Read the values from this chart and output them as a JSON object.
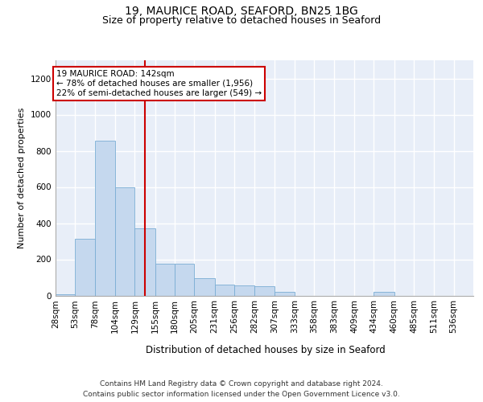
{
  "title_line1": "19, MAURICE ROAD, SEAFORD, BN25 1BG",
  "title_line2": "Size of property relative to detached houses in Seaford",
  "xlabel": "Distribution of detached houses by size in Seaford",
  "ylabel": "Number of detached properties",
  "footer_line1": "Contains HM Land Registry data © Crown copyright and database right 2024.",
  "footer_line2": "Contains public sector information licensed under the Open Government Licence v3.0.",
  "annotation_line1": "19 MAURICE ROAD: 142sqm",
  "annotation_line2": "← 78% of detached houses are smaller (1,956)",
  "annotation_line3": "22% of semi-detached houses are larger (549) →",
  "bar_color": "#c5d8ee",
  "bar_edge_color": "#7aadd4",
  "vline_color": "#cc0000",
  "vline_x": 142,
  "categories": [
    "28sqm",
    "53sqm",
    "78sqm",
    "104sqm",
    "129sqm",
    "155sqm",
    "180sqm",
    "205sqm",
    "231sqm",
    "256sqm",
    "282sqm",
    "307sqm",
    "333sqm",
    "358sqm",
    "383sqm",
    "409sqm",
    "434sqm",
    "460sqm",
    "485sqm",
    "511sqm",
    "536sqm"
  ],
  "bin_edges": [
    28,
    53,
    78,
    104,
    129,
    155,
    180,
    205,
    231,
    256,
    282,
    307,
    333,
    358,
    383,
    409,
    434,
    460,
    485,
    511,
    536,
    561
  ],
  "values": [
    8,
    315,
    855,
    600,
    370,
    175,
    175,
    95,
    60,
    55,
    50,
    18,
    0,
    0,
    0,
    0,
    18,
    0,
    0,
    0,
    0
  ],
  "ylim": [
    0,
    1300
  ],
  "yticks": [
    0,
    200,
    400,
    600,
    800,
    1000,
    1200
  ],
  "background_color": "#e8eef8",
  "grid_color": "#ffffff",
  "annotation_box_color": "#ffffff",
  "annotation_box_edge": "#cc0000",
  "title1_fontsize": 10,
  "title2_fontsize": 9,
  "xlabel_fontsize": 8.5,
  "ylabel_fontsize": 8,
  "tick_fontsize": 7.5,
  "footer_fontsize": 6.5,
  "annotation_fontsize": 7.5
}
